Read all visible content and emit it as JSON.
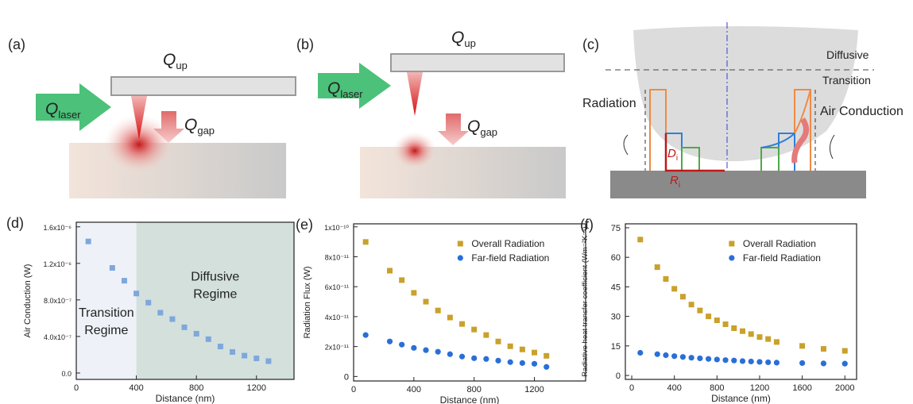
{
  "panels": {
    "a": {
      "label": "(a)",
      "q_up": {
        "symbol": "Q",
        "sub": "up"
      },
      "q_laser": {
        "symbol": "Q",
        "sub": "laser"
      },
      "q_gap": {
        "symbol": "Q",
        "sub": "gap"
      }
    },
    "b": {
      "label": "(b)",
      "q_up": {
        "symbol": "Q",
        "sub": "up"
      },
      "q_laser": {
        "symbol": "Q",
        "sub": "laser"
      },
      "q_gap": {
        "symbol": "Q",
        "sub": "gap"
      }
    },
    "c": {
      "label": "(c)",
      "diffusive": "Diffusive",
      "transition": "Transition",
      "radiation": "Radiation",
      "air_conduction": "Air Conduction",
      "d_i": {
        "symbol": "D",
        "sub": "i"
      },
      "r_i": {
        "symbol": "R",
        "sub": "i"
      }
    }
  },
  "chart_data": [
    {
      "type": "scatter",
      "label": "(d)",
      "x_label": "Distance (nm)",
      "y_label": "Air Conduction (W)",
      "x": [
        80,
        240,
        320,
        400,
        480,
        560,
        640,
        720,
        800,
        880,
        960,
        1040,
        1120,
        1200,
        1280
      ],
      "series": [
        {
          "name": null,
          "color": "#7fa7db",
          "marker": "square",
          "values": [
            1.44e-06,
            1.15e-06,
            1.01e-06,
            8.7e-07,
            7.7e-07,
            6.6e-07,
            5.9e-07,
            5e-07,
            4.3e-07,
            3.7e-07,
            2.9e-07,
            2.3e-07,
            1.9e-07,
            1.6e-07,
            1.3e-07
          ]
        }
      ],
      "regions": [
        {
          "start": 0,
          "label": [
            "Transition",
            "Regime"
          ],
          "color": "#eef2f8"
        },
        {
          "start": 400,
          "label": [
            "Diffusive",
            "Regime"
          ],
          "color": "#d3e0dc"
        }
      ],
      "xlim": [
        0,
        1450
      ],
      "xticks": [
        0,
        400,
        800,
        1200
      ],
      "ylim": [
        -7e-08,
        1.65e-06
      ],
      "yticks": [
        {
          "value": 0,
          "label": "0.0"
        },
        {
          "value": 4e-07,
          "label": "4.0x10⁻⁷"
        },
        {
          "value": 8e-07,
          "label": "8.0x10⁻⁷"
        },
        {
          "value": 1.2e-06,
          "label": "1.2x10⁻⁶"
        },
        {
          "value": 1.6e-06,
          "label": "1.6x10⁻⁶"
        }
      ]
    },
    {
      "type": "scatter",
      "label": "(e)",
      "x_label": "Distance (nm)",
      "y_label": "Radiation Flux (W)",
      "legend": "upper right",
      "x": [
        80,
        240,
        320,
        400,
        480,
        560,
        640,
        720,
        800,
        880,
        960,
        1040,
        1120,
        1200,
        1280
      ],
      "series": [
        {
          "name": "Overall Radiation",
          "color": "#c9a12b",
          "marker": "square",
          "values": [
            8.99e-11,
            7.07e-11,
            6.44e-11,
            5.59e-11,
            5e-11,
            4.41e-11,
            3.94e-11,
            3.51e-11,
            3.14e-11,
            2.77e-11,
            2.34e-11,
            2.02e-11,
            1.81e-11,
            1.6e-11,
            1.38e-11
          ]
        },
        {
          "name": "Far-field Radiation",
          "color": "#2a6fd8",
          "marker": "circle",
          "values": [
            2.77e-11,
            2.34e-11,
            2.13e-11,
            1.91e-11,
            1.76e-11,
            1.65e-11,
            1.49e-11,
            1.33e-11,
            1.22e-11,
            1.17e-11,
            1.06e-11,
            9.6e-12,
            9e-12,
            8.5e-12,
            6.4e-12
          ]
        }
      ],
      "xlim": [
        0,
        1540
      ],
      "xticks": [
        0,
        400,
        800,
        1200
      ],
      "ylim": [
        -3e-12,
        1.02e-10
      ],
      "yticks": [
        0,
        {
          "value": 2e-11,
          "label": "2x10⁻¹¹"
        },
        {
          "value": 4e-11,
          "label": "4x10⁻¹¹"
        },
        {
          "value": 6e-11,
          "label": "6x10⁻¹¹"
        },
        {
          "value": 8e-11,
          "label": "8x10⁻¹¹"
        },
        {
          "value": 1e-10,
          "label": "1x10⁻¹⁰"
        }
      ]
    },
    {
      "type": "scatter",
      "label": "(f)",
      "x_label": "Distance (nm)",
      "y_label": "Radiative heat transfer coefficient (Wm⁻²K⁻¹)",
      "legend": "upper right",
      "x": [
        80,
        240,
        320,
        400,
        480,
        560,
        640,
        720,
        800,
        880,
        960,
        1040,
        1120,
        1200,
        1280,
        1360,
        1600,
        1800,
        2000
      ],
      "series": [
        {
          "name": "Overall Radiation",
          "color": "#c9a12b",
          "marker": "square",
          "values": [
            69,
            55,
            49,
            44,
            40,
            36,
            33,
            30,
            28,
            26,
            24,
            22.5,
            21,
            19.5,
            18.5,
            17,
            15,
            13.5,
            12.5
          ]
        },
        {
          "name": "Far-field Radiation",
          "color": "#2a6fd8",
          "marker": "circle",
          "values": [
            11.5,
            10.8,
            10.3,
            9.8,
            9.4,
            9,
            8.7,
            8.4,
            8.1,
            7.8,
            7.6,
            7.3,
            7.1,
            6.9,
            6.7,
            6.5,
            6.3,
            6.1,
            6.0
          ]
        }
      ],
      "xlim": [
        -60,
        2110
      ],
      "xticks": [
        0,
        400,
        800,
        1200,
        1600,
        2000
      ],
      "ylim": [
        -2,
        77
      ],
      "yticks": [
        0,
        15,
        30,
        45,
        60,
        75
      ]
    }
  ]
}
